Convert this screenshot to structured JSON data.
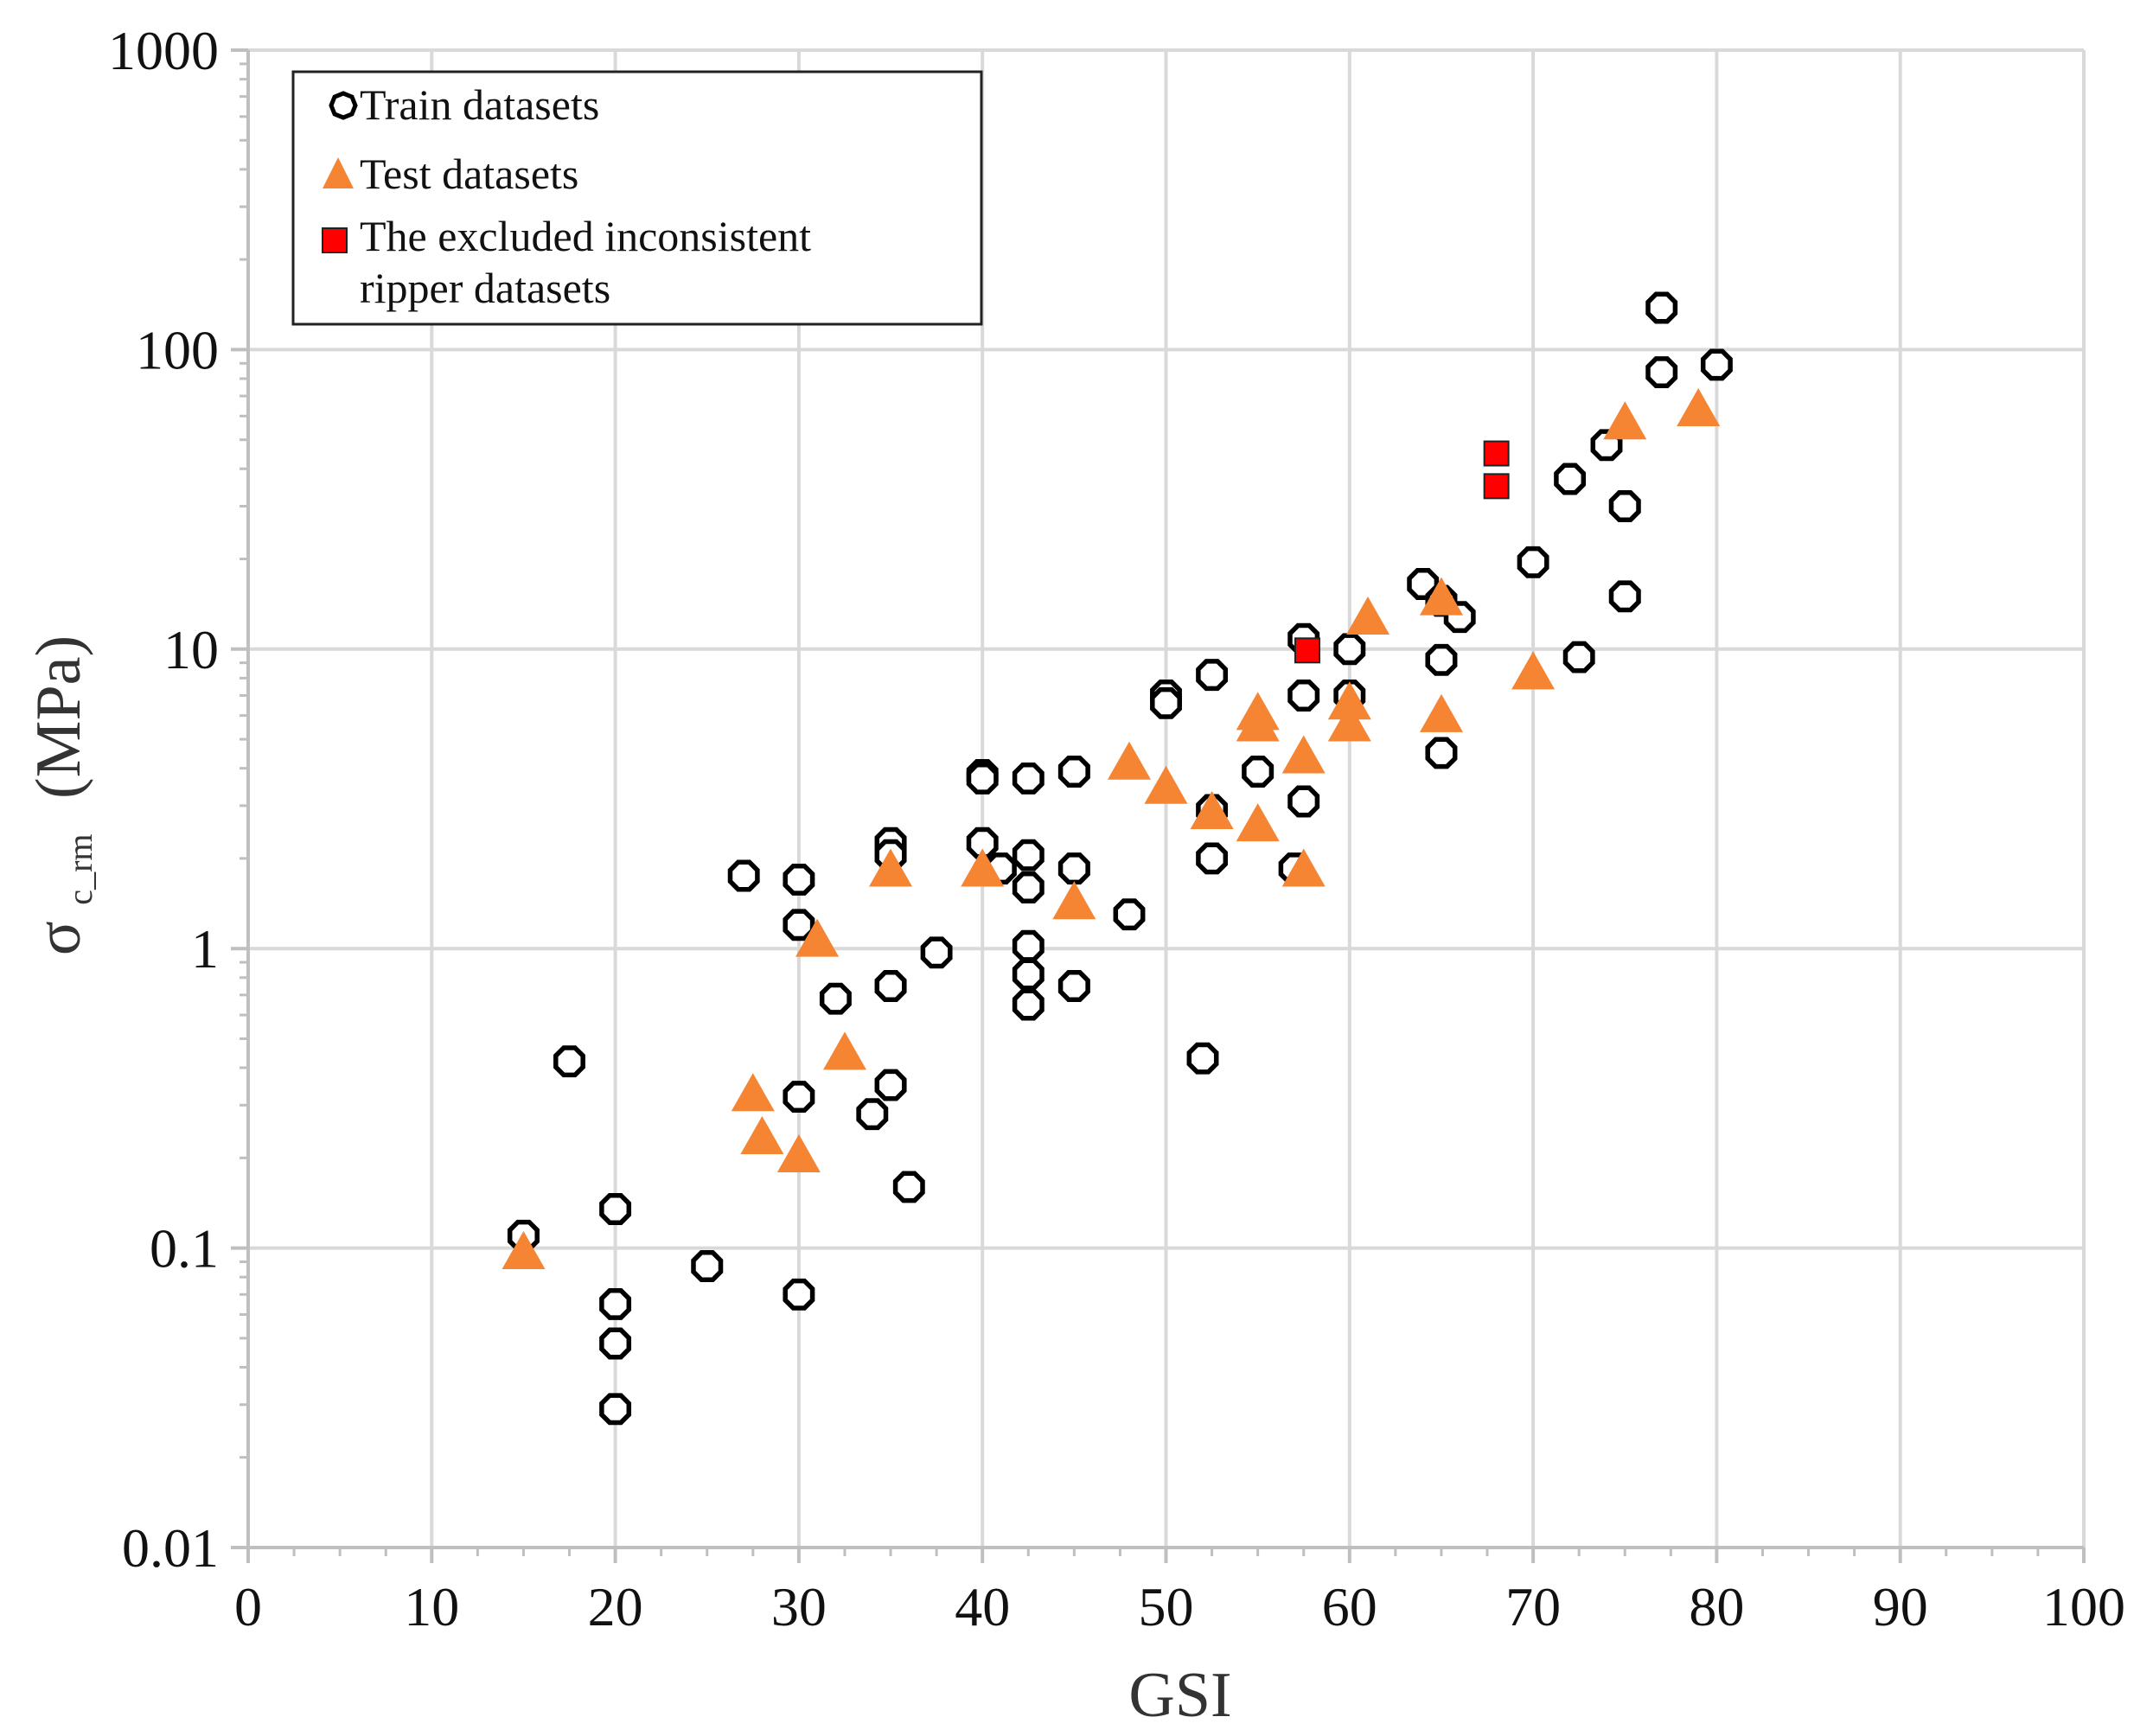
{
  "chart_data": {
    "type": "scatter",
    "xlabel": "GSI",
    "ylabel_main": "σ",
    "ylabel_sub": "c_rm",
    "ylabel_unit": "(MPa)",
    "x_scale": "linear",
    "y_scale": "log",
    "xlim": [
      0,
      100
    ],
    "ylim": [
      0.01,
      1000
    ],
    "x_ticks": [
      0,
      10,
      20,
      30,
      40,
      50,
      60,
      70,
      80,
      90,
      100
    ],
    "x_tick_labels": [
      "0",
      "10",
      "20",
      "30",
      "40",
      "50",
      "60",
      "70",
      "80",
      "90",
      "100"
    ],
    "y_ticks": [
      0.01,
      0.1,
      1,
      10,
      100,
      1000
    ],
    "y_tick_labels": [
      "0.01",
      "0.1",
      "1",
      "10",
      "100",
      "1000"
    ],
    "grid": true,
    "legend_position": "top-left",
    "series": [
      {
        "name": "Train datasets",
        "marker": "hollow-circle",
        "color": "#000000",
        "points": [
          [
            15,
            0.11
          ],
          [
            17.5,
            0.42
          ],
          [
            20,
            0.135
          ],
          [
            20,
            0.065
          ],
          [
            20,
            0.048
          ],
          [
            20,
            0.029
          ],
          [
            25,
            0.087
          ],
          [
            27,
            1.75
          ],
          [
            30,
            1.7
          ],
          [
            30,
            1.2
          ],
          [
            30,
            0.32
          ],
          [
            30,
            0.07
          ],
          [
            32,
            0.68
          ],
          [
            34,
            0.28
          ],
          [
            35,
            2.25
          ],
          [
            35,
            2.05
          ],
          [
            35,
            0.75
          ],
          [
            35,
            0.35
          ],
          [
            36,
            0.16
          ],
          [
            37.5,
            0.97
          ],
          [
            40,
            3.8
          ],
          [
            40,
            3.7
          ],
          [
            40,
            2.25
          ],
          [
            41,
            1.85
          ],
          [
            42.5,
            3.7
          ],
          [
            42.5,
            2.05
          ],
          [
            42.5,
            1.6
          ],
          [
            42.5,
            1.02
          ],
          [
            42.5,
            0.82
          ],
          [
            42.5,
            0.65
          ],
          [
            45,
            3.9
          ],
          [
            45,
            1.85
          ],
          [
            45,
            0.75
          ],
          [
            48,
            1.3
          ],
          [
            50,
            7.0
          ],
          [
            50,
            6.6
          ],
          [
            52,
            0.43
          ],
          [
            52.5,
            8.2
          ],
          [
            52.5,
            2.9
          ],
          [
            52.5,
            2.0
          ],
          [
            55,
            3.9
          ],
          [
            57,
            1.85
          ],
          [
            57.5,
            10.8
          ],
          [
            57.5,
            7.0
          ],
          [
            57.5,
            3.1
          ],
          [
            60,
            10.0
          ],
          [
            60,
            7.0
          ],
          [
            64,
            16.5
          ],
          [
            65,
            14.5
          ],
          [
            65,
            9.2
          ],
          [
            65,
            4.5
          ],
          [
            66,
            12.8
          ],
          [
            70,
            19.5
          ],
          [
            72,
            37
          ],
          [
            72.5,
            9.4
          ],
          [
            74,
            48
          ],
          [
            75,
            30
          ],
          [
            75,
            15
          ],
          [
            77,
            138
          ],
          [
            77,
            84
          ],
          [
            80,
            89
          ]
        ]
      },
      {
        "name": "Test datasets",
        "marker": "filled-triangle",
        "color": "#f58433",
        "points": [
          [
            15,
            0.095
          ],
          [
            27.5,
            0.32
          ],
          [
            28,
            0.23
          ],
          [
            30,
            0.2
          ],
          [
            31,
            1.05
          ],
          [
            32.5,
            0.44
          ],
          [
            35,
            1.8
          ],
          [
            40,
            1.8
          ],
          [
            45,
            1.4
          ],
          [
            48,
            4.1
          ],
          [
            50,
            3.4
          ],
          [
            52.5,
            2.8
          ],
          [
            55,
            6.0
          ],
          [
            55,
            5.5
          ],
          [
            55,
            2.55
          ],
          [
            57.5,
            4.3
          ],
          [
            57.5,
            1.8
          ],
          [
            60,
            6.5
          ],
          [
            60,
            5.5
          ],
          [
            61,
            12.5
          ],
          [
            65,
            14.5
          ],
          [
            65,
            5.9
          ],
          [
            70,
            8.2
          ],
          [
            75,
            56
          ],
          [
            79,
            62
          ]
        ]
      },
      {
        "name": "The excluded inconsistent ripper datasets",
        "marker": "filled-square",
        "color": "#ff0000",
        "points": [
          [
            57.7,
            9.9
          ],
          [
            68,
            45
          ],
          [
            68,
            35
          ]
        ]
      }
    ]
  },
  "legend": {
    "entries": [
      {
        "label": "Train datasets"
      },
      {
        "label": "Test datasets"
      },
      {
        "label_line1": "The excluded inconsistent",
        "label_line2": "ripper datasets"
      }
    ]
  }
}
